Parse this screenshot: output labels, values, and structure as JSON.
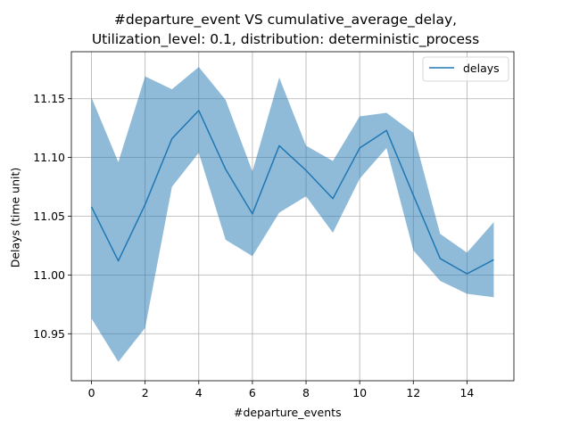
{
  "chart_data": {
    "type": "line",
    "title_line1": "#departure_event VS cumulative_average_delay,",
    "title_line2": "Utilization_level: 0.1, distribution: deterministic_process",
    "xlabel": "#departure_events",
    "ylabel": "Delays (time unit)",
    "xlim": [
      -0.75,
      15.75
    ],
    "ylim": [
      10.91,
      11.19
    ],
    "x_ticks": [
      0,
      2,
      4,
      6,
      8,
      10,
      12,
      14
    ],
    "y_ticks": [
      10.95,
      11.0,
      11.05,
      11.1,
      11.15
    ],
    "y_tick_labels": [
      "10.95",
      "11.00",
      "11.05",
      "11.10",
      "11.15"
    ],
    "grid": true,
    "legend_placement": "top-right",
    "series": [
      {
        "name": "delays",
        "color": "#1f77b4",
        "band_color": "#1f77b4",
        "band_alpha": 0.5,
        "x": [
          0,
          1,
          2,
          3,
          4,
          5,
          6,
          7,
          8,
          9,
          10,
          11,
          12,
          13,
          14,
          15
        ],
        "values": [
          11.058,
          11.012,
          11.06,
          11.116,
          11.14,
          11.09,
          11.052,
          11.11,
          11.089,
          11.065,
          11.108,
          11.123,
          11.068,
          11.014,
          11.001,
          11.013
        ],
        "upper": [
          11.151,
          11.096,
          11.169,
          11.158,
          11.177,
          11.149,
          11.088,
          11.168,
          11.11,
          11.097,
          11.135,
          11.138,
          11.121,
          11.035,
          11.019,
          11.045
        ],
        "lower": [
          10.963,
          10.926,
          10.955,
          11.075,
          11.104,
          11.03,
          11.016,
          11.053,
          11.067,
          11.036,
          11.082,
          11.108,
          11.021,
          10.995,
          10.984,
          10.981
        ]
      }
    ]
  }
}
